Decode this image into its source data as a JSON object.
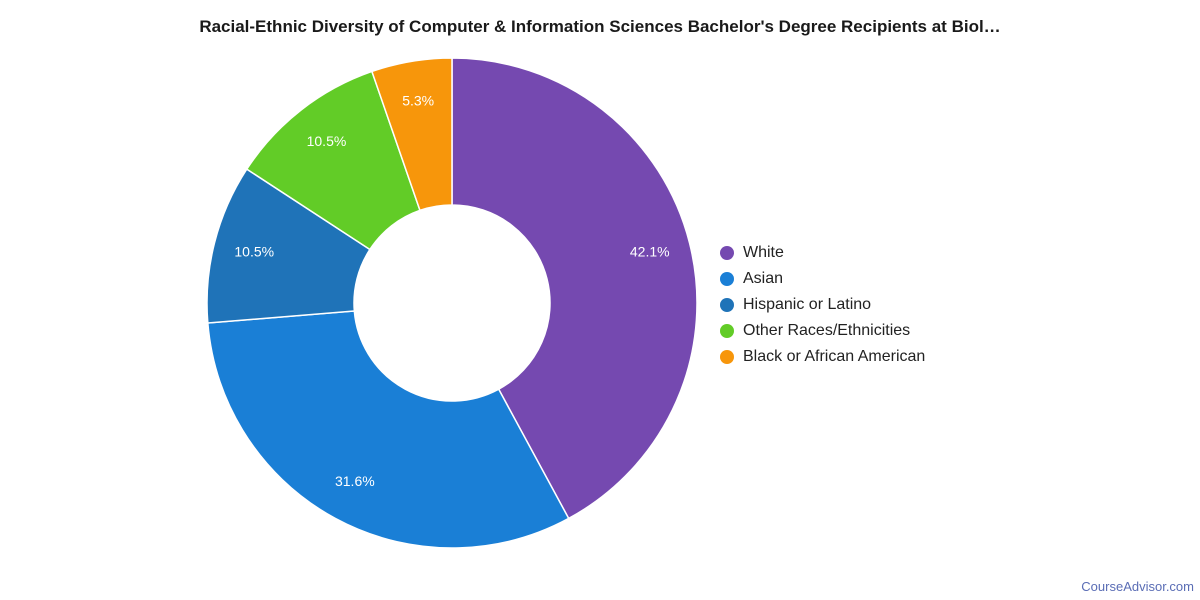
{
  "chart_data": {
    "type": "pie",
    "title": "Racial-Ethnic Diversity of Computer & Information Sciences Bachelor's Degree Recipients at Biol…",
    "categories": [
      "White",
      "Asian",
      "Hispanic or Latino",
      "Other Races/Ethnicities",
      "Black or African American"
    ],
    "values": [
      42.1,
      31.6,
      10.5,
      10.5,
      5.3
    ],
    "labels": [
      "42.1%",
      "31.6%",
      "10.5%",
      "10.5%",
      "5.3%"
    ],
    "colors": [
      "#7549b0",
      "#1a7fd6",
      "#1f73b8",
      "#62cc27",
      "#f7960b"
    ],
    "legend_position": "right",
    "donut": true
  },
  "credit": "CourseAdvisor.com"
}
